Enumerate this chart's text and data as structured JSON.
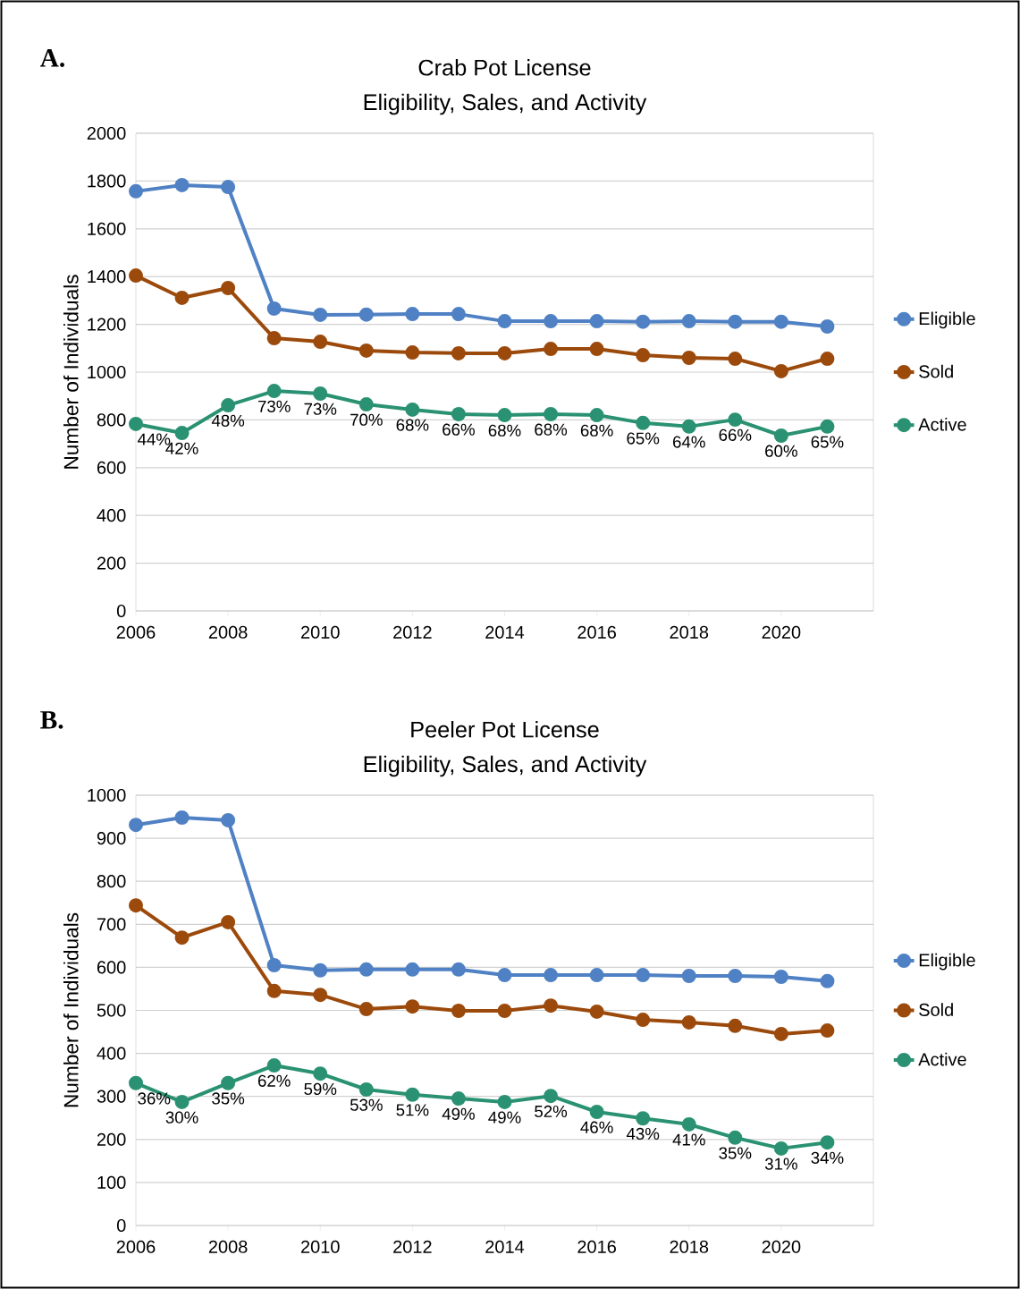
{
  "chart_data": [
    {
      "type": "line",
      "title": "Crab Pot License",
      "subtitle": "Eligibility, Sales, and Activity",
      "ylabel": "Number of Individuals",
      "x": [
        2006,
        2007,
        2008,
        2009,
        2010,
        2011,
        2012,
        2013,
        2014,
        2015,
        2016,
        2017,
        2018,
        2019,
        2020,
        2021
      ],
      "xlim": [
        2006,
        2022
      ],
      "xticks": [
        2006,
        2008,
        2010,
        2012,
        2014,
        2016,
        2018,
        2020
      ],
      "ylim": [
        0,
        2000
      ],
      "yticks": [
        0,
        200,
        400,
        600,
        800,
        1000,
        1200,
        1400,
        1600,
        1800,
        2000
      ],
      "grid": "y",
      "legend": "right",
      "marker": "circle",
      "series": [
        {
          "name": "Eligible",
          "color": "#4f81c4",
          "values": [
            1757,
            1783,
            1775,
            1266,
            1240,
            1241,
            1243,
            1243,
            1213,
            1213,
            1213,
            1211,
            1213,
            1211,
            1211,
            1191
          ]
        },
        {
          "name": "Sold",
          "color": "#9c4a0c",
          "values": [
            1404,
            1311,
            1352,
            1142,
            1127,
            1090,
            1082,
            1079,
            1079,
            1097,
            1097,
            1071,
            1060,
            1056,
            1004,
            1056
          ]
        },
        {
          "name": "Active",
          "color": "#2a9272",
          "values": [
            783,
            745,
            861,
            921,
            910,
            865,
            843,
            824,
            820,
            824,
            820,
            787,
            772,
            801,
            734,
            772
          ]
        }
      ],
      "annotations": [
        "A.",
        {
          "text": "44%",
          "x": 2006,
          "y": 783
        },
        {
          "text": "42%",
          "x": 2007,
          "y": 745
        },
        {
          "text": "48%",
          "x": 2008,
          "y": 861
        },
        {
          "text": "73%",
          "x": 2009,
          "y": 921
        },
        {
          "text": "73%",
          "x": 2010,
          "y": 910
        },
        {
          "text": "70%",
          "x": 2011,
          "y": 865
        },
        {
          "text": "68%",
          "x": 2012,
          "y": 843
        },
        {
          "text": "66%",
          "x": 2013,
          "y": 824
        },
        {
          "text": "68%",
          "x": 2014,
          "y": 820
        },
        {
          "text": "68%",
          "x": 2015,
          "y": 824
        },
        {
          "text": "68%",
          "x": 2016,
          "y": 820
        },
        {
          "text": "65%",
          "x": 2017,
          "y": 787
        },
        {
          "text": "64%",
          "x": 2018,
          "y": 772
        },
        {
          "text": "66%",
          "x": 2019,
          "y": 801
        },
        {
          "text": "60%",
          "x": 2020,
          "y": 734
        },
        {
          "text": "65%",
          "x": 2021,
          "y": 772
        }
      ]
    },
    {
      "type": "line",
      "title": "Peeler Pot License",
      "subtitle": "Eligibility, Sales, and Activity",
      "ylabel": "Number of Individuals",
      "x": [
        2006,
        2007,
        2008,
        2009,
        2010,
        2011,
        2012,
        2013,
        2014,
        2015,
        2016,
        2017,
        2018,
        2019,
        2020,
        2021
      ],
      "xlim": [
        2006,
        2022
      ],
      "xticks": [
        2006,
        2008,
        2010,
        2012,
        2014,
        2016,
        2018,
        2020
      ],
      "ylim": [
        0,
        1000
      ],
      "yticks": [
        0,
        100,
        200,
        300,
        400,
        500,
        600,
        700,
        800,
        900,
        1000
      ],
      "grid": "y",
      "legend": "right",
      "marker": "circle",
      "series": [
        {
          "name": "Eligible",
          "color": "#4f81c4",
          "values": [
            931,
            948,
            942,
            605,
            593,
            595,
            595,
            595,
            582,
            582,
            582,
            582,
            580,
            580,
            578,
            568
          ]
        },
        {
          "name": "Sold",
          "color": "#9c4a0c",
          "values": [
            744,
            669,
            705,
            545,
            536,
            503,
            509,
            499,
            499,
            511,
            497,
            478,
            472,
            464,
            445,
            453
          ]
        },
        {
          "name": "Active",
          "color": "#2a9272",
          "values": [
            331,
            287,
            331,
            372,
            353,
            316,
            304,
            295,
            287,
            301,
            264,
            249,
            235,
            204,
            179,
            193
          ]
        }
      ],
      "annotations": [
        "B.",
        {
          "text": "36%",
          "x": 2006,
          "y": 331
        },
        {
          "text": "30%",
          "x": 2007,
          "y": 287
        },
        {
          "text": "35%",
          "x": 2008,
          "y": 331
        },
        {
          "text": "62%",
          "x": 2009,
          "y": 372
        },
        {
          "text": "59%",
          "x": 2010,
          "y": 353
        },
        {
          "text": "53%",
          "x": 2011,
          "y": 316
        },
        {
          "text": "51%",
          "x": 2012,
          "y": 304
        },
        {
          "text": "49%",
          "x": 2013,
          "y": 295
        },
        {
          "text": "49%",
          "x": 2014,
          "y": 287
        },
        {
          "text": "52%",
          "x": 2015,
          "y": 301
        },
        {
          "text": "46%",
          "x": 2016,
          "y": 264
        },
        {
          "text": "43%",
          "x": 2017,
          "y": 249
        },
        {
          "text": "41%",
          "x": 2018,
          "y": 235
        },
        {
          "text": "35%",
          "x": 2019,
          "y": 204
        },
        {
          "text": "31%",
          "x": 2020,
          "y": 179
        },
        {
          "text": "34%",
          "x": 2021,
          "y": 193
        }
      ]
    }
  ]
}
